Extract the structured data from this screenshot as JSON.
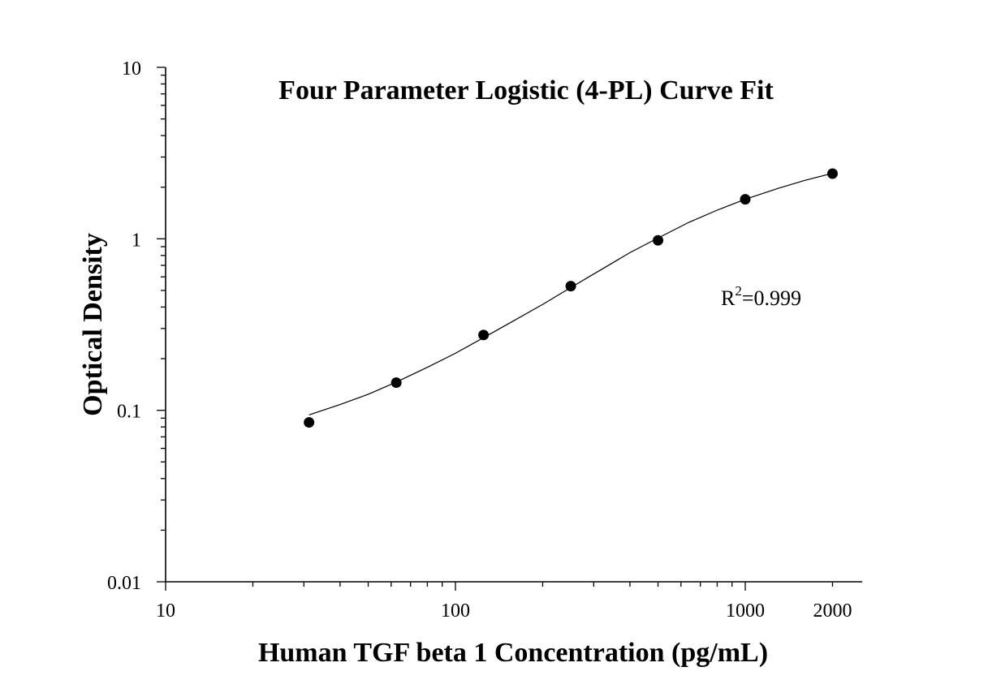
{
  "chart_data": {
    "type": "scatter",
    "title": "Four Parameter Logistic (4-PL) Curve Fit",
    "xlabel": "Human TGF beta 1 Concentration (pg/mL)",
    "ylabel": "Optical Density",
    "x_scale": "log",
    "y_scale": "log",
    "xlim": [
      10,
      2500
    ],
    "ylim": [
      0.01,
      10
    ],
    "x_ticks": [
      {
        "value": 10,
        "label": "10"
      },
      {
        "value": 100,
        "label": "100"
      },
      {
        "value": 1000,
        "label": "1000"
      },
      {
        "value": 2000,
        "label": "2000"
      }
    ],
    "y_ticks": [
      {
        "value": 10,
        "label": "10"
      },
      {
        "value": 1,
        "label": "1"
      },
      {
        "value": 0.1,
        "label": "0.1"
      },
      {
        "value": 0.01,
        "label": "0.01"
      }
    ],
    "grid": false,
    "legend": "none",
    "series": [
      {
        "x": [
          31.25,
          62.5,
          125,
          250,
          500,
          1000,
          2000
        ],
        "y": [
          0.085,
          0.145,
          0.275,
          0.53,
          0.98,
          1.7,
          2.4
        ]
      }
    ],
    "fit_curve": {
      "model": "4-PL",
      "x": [
        31.25,
        40,
        50,
        62.5,
        80,
        100,
        125,
        160,
        200,
        250,
        320,
        400,
        500,
        640,
        800,
        1000,
        1300,
        1600,
        2000
      ],
      "y": [
        0.094,
        0.108,
        0.124,
        0.146,
        0.178,
        0.215,
        0.265,
        0.335,
        0.415,
        0.52,
        0.665,
        0.83,
        1.01,
        1.25,
        1.47,
        1.7,
        1.97,
        2.19,
        2.41
      ]
    },
    "annotation": {
      "prefix": "R",
      "superscript": "2",
      "suffix": "=0.999"
    },
    "colors": {
      "marker": "#000000",
      "line": "#000000"
    }
  }
}
